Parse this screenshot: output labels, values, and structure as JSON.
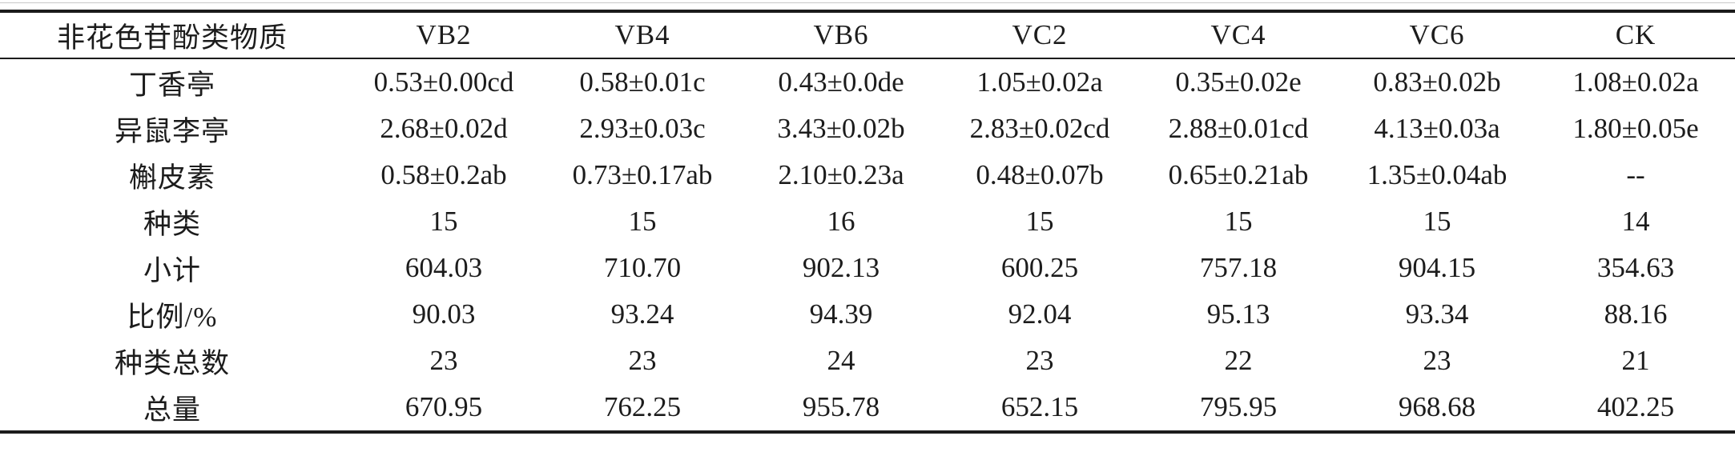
{
  "table": {
    "columns": [
      "非花色苷酚类物质",
      "VB2",
      "VB4",
      "VB6",
      "VC2",
      "VC4",
      "VC6",
      "CK"
    ],
    "rows": [
      {
        "label": "丁香亭",
        "values": [
          "0.53±0.00cd",
          "0.58±0.01c",
          "0.43±0.0de",
          "1.05±0.02a",
          "0.35±0.02e",
          "0.83±0.02b",
          "1.08±0.02a"
        ]
      },
      {
        "label": "异鼠李亭",
        "values": [
          "2.68±0.02d",
          "2.93±0.03c",
          "3.43±0.02b",
          "2.83±0.02cd",
          "2.88±0.01cd",
          "4.13±0.03a",
          "1.80±0.05e"
        ]
      },
      {
        "label": "槲皮素",
        "values": [
          "0.58±0.2ab",
          "0.73±0.17ab",
          "2.10±0.23a",
          "0.48±0.07b",
          "0.65±0.21ab",
          "1.35±0.04ab",
          "--"
        ]
      },
      {
        "label": "种类",
        "values": [
          "15",
          "15",
          "16",
          "15",
          "15",
          "15",
          "14"
        ]
      },
      {
        "label": "小计",
        "values": [
          "604.03",
          "710.70",
          "902.13",
          "600.25",
          "757.18",
          "904.15",
          "354.63"
        ]
      },
      {
        "label": "比例/%",
        "values": [
          "90.03",
          "93.24",
          "94.39",
          "92.04",
          "95.13",
          "93.34",
          "88.16"
        ]
      },
      {
        "label": "种类总数",
        "values": [
          "23",
          "23",
          "24",
          "23",
          "22",
          "23",
          "21"
        ]
      },
      {
        "label": "总量",
        "values": [
          "670.95",
          "762.25",
          "955.78",
          "652.15",
          "795.95",
          "968.68",
          "402.25"
        ]
      }
    ]
  },
  "chart_data": {
    "type": "table",
    "title": "",
    "columns": [
      "非花色苷酚类物质",
      "VB2",
      "VB4",
      "VB6",
      "VC2",
      "VC4",
      "VC6",
      "CK"
    ],
    "rows": [
      [
        "丁香亭",
        "0.53±0.00cd",
        "0.58±0.01c",
        "0.43±0.0de",
        "1.05±0.02a",
        "0.35±0.02e",
        "0.83±0.02b",
        "1.08±0.02a"
      ],
      [
        "异鼠李亭",
        "2.68±0.02d",
        "2.93±0.03c",
        "3.43±0.02b",
        "2.83±0.02cd",
        "2.88±0.01cd",
        "4.13±0.03a",
        "1.80±0.05e"
      ],
      [
        "槲皮素",
        "0.58±0.2ab",
        "0.73±0.17ab",
        "2.10±0.23a",
        "0.48±0.07b",
        "0.65±0.21ab",
        "1.35±0.04ab",
        "--"
      ],
      [
        "种类",
        "15",
        "15",
        "16",
        "15",
        "15",
        "15",
        "14"
      ],
      [
        "小计",
        "604.03",
        "710.70",
        "902.13",
        "600.25",
        "757.18",
        "904.15",
        "354.63"
      ],
      [
        "比例/%",
        "90.03",
        "93.24",
        "94.39",
        "92.04",
        "95.13",
        "93.34",
        "88.16"
      ],
      [
        "种类总数",
        "23",
        "23",
        "24",
        "23",
        "22",
        "23",
        "21"
      ],
      [
        "总量",
        "670.95",
        "762.25",
        "955.78",
        "652.15",
        "795.95",
        "968.68",
        "402.25"
      ]
    ]
  },
  "colors": {
    "text": "#1c1c1c",
    "rule": "#1b1b1b",
    "hairline": "#c9c9c9",
    "background": "#ffffff"
  }
}
